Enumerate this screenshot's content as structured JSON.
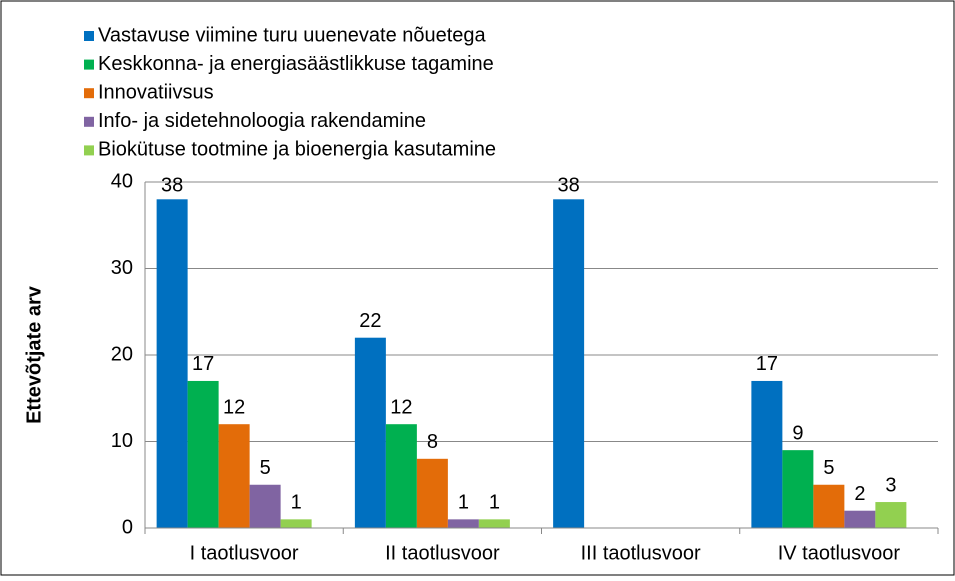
{
  "chart_data": {
    "type": "bar",
    "categories": [
      "I taotlusvoor",
      "II taotlusvoor",
      "III taotlusvoor",
      "IV taotlusvoor"
    ],
    "series": [
      {
        "name": "Vastavuse viimine turu uuenevate nõuetega",
        "color": "#0070c0",
        "values": [
          38,
          22,
          38,
          17
        ]
      },
      {
        "name": "Keskkonna- ja energiasäästlikkuse tagamine",
        "color": "#00b050",
        "values": [
          17,
          12,
          null,
          9
        ]
      },
      {
        "name": "Innovatiivsus",
        "color": "#e36c09",
        "values": [
          12,
          8,
          null,
          5
        ]
      },
      {
        "name": "Info- ja sidetehnoloogia rakendamine",
        "color": "#8064a2",
        "values": [
          5,
          1,
          null,
          2
        ]
      },
      {
        "name": "Biokütuse tootmine ja bioenergia kasutamine",
        "color": "#92d050",
        "values": [
          1,
          1,
          null,
          3
        ]
      }
    ],
    "y_label": "Ettevõtjate arv",
    "ylim": [
      0,
      40
    ],
    "yticks": [
      0,
      10,
      20,
      30,
      40
    ],
    "grid": true,
    "legend": "top-left"
  }
}
